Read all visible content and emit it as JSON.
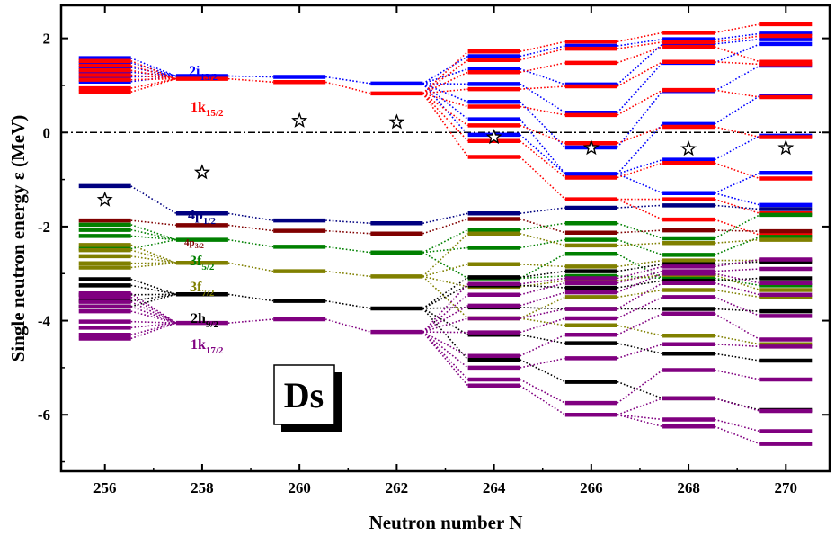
{
  "chart_data": {
    "type": "line",
    "xlabel": "Neutron number N",
    "ylabel": "Single neutron energy ε (MeV)",
    "xlim": [
      255.1,
      270.9
    ],
    "ylim": [
      -7.2,
      2.7
    ],
    "x_ticks": [
      "256",
      "258",
      "260",
      "262",
      "264",
      "266",
      "268",
      "270"
    ],
    "y_ticks": [
      "-6",
      "-4",
      "-2",
      "0",
      "2"
    ],
    "fermi_energy": 0,
    "inset_label": "Ds",
    "colors": {
      "blue": "#0000ff",
      "red": "#ff0000",
      "navy": "#000080",
      "maroon": "#800000",
      "green": "#008000",
      "olive": "#808000",
      "black": "#000000",
      "purple": "#800080"
    },
    "level_labels": [
      {
        "base": "2i",
        "sub": "13/2",
        "color": "#0000ff"
      },
      {
        "base": "1k",
        "sub": "15/2",
        "color": "#ff0000"
      },
      {
        "base": "4p",
        "sub": "1/2",
        "color": "#000080"
      },
      {
        "base": "4p",
        "sub": "3/2",
        "color": "#800000"
      },
      {
        "base": "3f",
        "sub": "5/2",
        "color": "#008000"
      },
      {
        "base": "3f",
        "sub": "7/2",
        "color": "#808000"
      },
      {
        "base": "2h",
        "sub": "9/2",
        "color": "#000000"
      },
      {
        "base": "1k",
        "sub": "17/2",
        "color": "#800080"
      }
    ],
    "fermi_stars": [
      {
        "N": 256,
        "e": -1.43
      },
      {
        "N": 258,
        "e": -0.85
      },
      {
        "N": 260,
        "e": 0.25
      },
      {
        "N": 262,
        "e": 0.22
      },
      {
        "N": 264,
        "e": -0.1
      },
      {
        "N": 266,
        "e": -0.33
      },
      {
        "N": 268,
        "e": -0.35
      },
      {
        "N": 270,
        "e": -0.33
      }
    ],
    "series": [
      {
        "color": "blue",
        "levels": [
          [
            1.58,
            1.48,
            1.38,
            1.28,
            1.18,
            1.08
          ],
          [
            1.2
          ],
          [
            1.18
          ],
          [
            1.04
          ],
          [
            1.62,
            1.35,
            1.03,
            0.65,
            0.28,
            -0.05
          ],
          [
            1.84,
            1.02,
            0.42,
            -0.32,
            -0.88
          ],
          [
            1.98,
            1.88,
            1.48,
            0.88,
            0.18,
            -0.58,
            -1.29
          ],
          [
            2.1,
            1.98,
            1.88,
            1.42,
            0.78,
            -0.07,
            -0.86,
            -1.54
          ]
        ]
      },
      {
        "color": "red",
        "levels": [
          [
            1.52,
            1.42,
            1.32,
            1.22,
            1.12,
            0.94,
            0.86
          ],
          [
            1.14
          ],
          [
            1.07
          ],
          [
            0.83
          ],
          [
            1.72,
            1.54,
            1.28,
            0.92,
            0.55,
            0.15,
            -0.18,
            -0.52
          ],
          [
            1.93,
            1.78,
            1.48,
            0.98,
            0.37,
            -0.23,
            -0.96,
            -1.42
          ],
          [
            2.12,
            1.92,
            1.82,
            1.5,
            0.9,
            0.12,
            -0.65,
            -1.42,
            -1.85
          ],
          [
            2.3,
            2.05,
            1.5,
            1.45,
            0.75,
            -0.1,
            -0.98,
            -1.72,
            -2.18
          ]
        ]
      },
      {
        "color": "navy",
        "levels": [
          [
            -1.14
          ],
          [
            -1.72
          ],
          [
            -1.87
          ],
          [
            -1.93
          ],
          [
            -1.72
          ],
          [
            -1.6
          ],
          [
            -1.55
          ],
          [
            -1.63
          ]
        ]
      },
      {
        "color": "maroon",
        "levels": [
          [
            -1.87
          ],
          [
            -1.97
          ],
          [
            -2.09
          ],
          [
            -2.15
          ],
          [
            -1.84
          ],
          [
            -2.13
          ],
          [
            -2.08
          ],
          [
            -2.1
          ]
        ]
      },
      {
        "color": "green",
        "levels": [
          [
            -1.96,
            -2.07,
            -2.2,
            -2.47
          ],
          [
            -2.28
          ],
          [
            -2.43
          ],
          [
            -2.55
          ],
          [
            -2.07,
            -2.45,
            -3.1
          ],
          [
            -1.93,
            -2.28,
            -2.58,
            -3.05
          ],
          [
            -2.25,
            -2.6,
            -3.1
          ],
          [
            -1.75,
            -2.22,
            -3.25
          ]
        ]
      },
      {
        "color": "olive",
        "levels": [
          [
            -2.39,
            -2.5,
            -2.63,
            -2.78,
            -2.87
          ],
          [
            -2.77
          ],
          [
            -2.95
          ],
          [
            -3.06
          ],
          [
            -2.15,
            -2.8,
            -3.28,
            -3.95
          ],
          [
            -2.4,
            -2.85,
            -3.15,
            -3.5,
            -4.1
          ],
          [
            -2.35,
            -2.72,
            -3.03,
            -3.35,
            -4.32
          ],
          [
            -2.28,
            -2.72,
            -3.35,
            -3.5,
            -4.5
          ]
        ]
      },
      {
        "color": "black",
        "levels": [
          [
            -3.12,
            -3.25,
            -3.45,
            -3.58,
            -3.7
          ],
          [
            -3.44
          ],
          [
            -3.58
          ],
          [
            -3.74
          ],
          [
            -3.08,
            -3.25,
            -3.72,
            -4.3,
            -4.83
          ],
          [
            -2.95,
            -3.3,
            -3.75,
            -4.48,
            -5.3
          ],
          [
            -2.8,
            -3.15,
            -3.75,
            -4.7,
            -5.65
          ],
          [
            -2.75,
            -3.1,
            -3.8,
            -4.85,
            -5.9
          ]
        ]
      },
      {
        "color": "purple",
        "levels": [
          [
            -3.42,
            -3.5,
            -3.6,
            -3.7,
            -3.8,
            -4.02,
            -4.15,
            -4.3,
            -4.38
          ],
          [
            -4.05
          ],
          [
            -3.97
          ],
          [
            -4.24
          ],
          [
            -3.22,
            -3.45,
            -3.68,
            -3.95,
            -4.25,
            -4.75,
            -5.0,
            -5.25,
            -5.38
          ],
          [
            -3.1,
            -3.2,
            -3.4,
            -3.75,
            -3.95,
            -4.3,
            -4.8,
            -5.75,
            -6.0
          ],
          [
            -2.85,
            -2.95,
            -3.0,
            -3.2,
            -3.5,
            -3.85,
            -4.5,
            -5.05,
            -5.65,
            -6.1,
            -6.25
          ],
          [
            -2.7,
            -2.9,
            -3.2,
            -3.45,
            -3.9,
            -4.4,
            -4.55,
            -5.25,
            -5.92,
            -6.35,
            -6.62
          ]
        ]
      }
    ]
  }
}
